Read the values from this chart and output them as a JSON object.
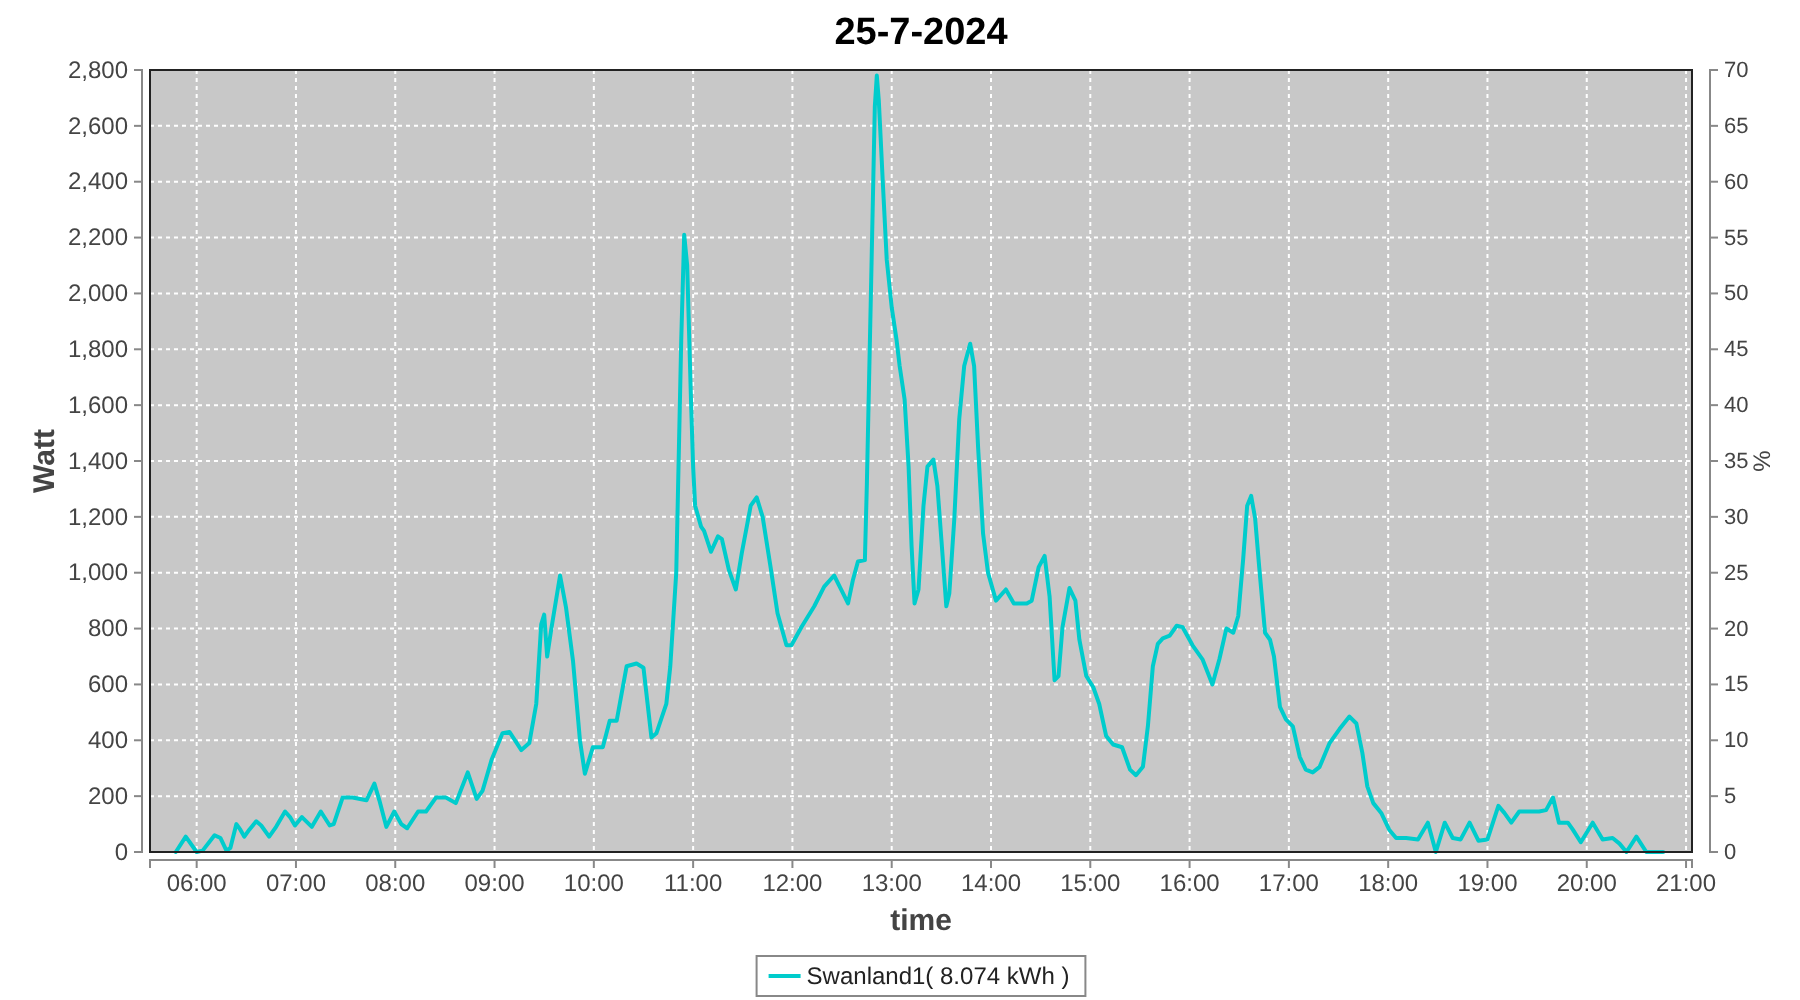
{
  "chart_data": {
    "type": "line",
    "title": "25-7-2024",
    "xlabel": "time",
    "ylabel": "Watt",
    "y2label": "%",
    "x": [
      5.79,
      5.89,
      6.0,
      6.06,
      6.18,
      6.24,
      6.3,
      6.34,
      6.4,
      6.44,
      6.48,
      6.53,
      6.6,
      6.65,
      6.73,
      6.8,
      6.89,
      6.94,
      6.99,
      7.06,
      7.16,
      7.25,
      7.34,
      7.38,
      7.47,
      7.57,
      7.71,
      7.79,
      7.84,
      7.91,
      7.99,
      8.06,
      8.12,
      8.23,
      8.31,
      8.41,
      8.51,
      8.61,
      8.73,
      8.82,
      8.88,
      8.97,
      9.08,
      9.15,
      9.27,
      9.35,
      9.42,
      9.47,
      9.5,
      9.53,
      9.57,
      9.66,
      9.72,
      9.79,
      9.86,
      9.91,
      9.99,
      10.09,
      10.16,
      10.23,
      10.33,
      10.43,
      10.5,
      10.58,
      10.63,
      10.73,
      10.77,
      10.83,
      10.88,
      10.91,
      10.94,
      10.98,
      11.0,
      11.02,
      11.08,
      11.11,
      11.18,
      11.25,
      11.29,
      11.36,
      11.43,
      11.49,
      11.58,
      11.64,
      11.7,
      11.78,
      11.85,
      11.94,
      11.99,
      12.09,
      12.22,
      12.32,
      12.42,
      12.49,
      12.56,
      12.61,
      12.66,
      12.73,
      12.75,
      12.79,
      12.83,
      12.85,
      12.87,
      12.88,
      12.91,
      12.95,
      13.0,
      13.05,
      13.08,
      13.13,
      13.17,
      13.2,
      13.23,
      13.27,
      13.32,
      13.36,
      13.42,
      13.46,
      13.5,
      13.55,
      13.58,
      13.63,
      13.68,
      13.73,
      13.79,
      13.83,
      13.87,
      13.92,
      13.97,
      14.05,
      14.15,
      14.23,
      14.36,
      14.41,
      14.48,
      14.54,
      14.59,
      14.64,
      14.68,
      14.72,
      14.79,
      14.85,
      14.89,
      14.96,
      15.03,
      15.09,
      15.16,
      15.23,
      15.32,
      15.4,
      15.46,
      15.53,
      15.58,
      15.63,
      15.68,
      15.73,
      15.8,
      15.87,
      15.93,
      16.03,
      16.13,
      16.23,
      16.3,
      16.37,
      16.44,
      16.49,
      16.54,
      16.58,
      16.62,
      16.66,
      16.7,
      16.76,
      16.81,
      16.85,
      16.91,
      16.97,
      17.04,
      17.11,
      17.17,
      17.24,
      17.31,
      17.41,
      17.51,
      17.61,
      17.68,
      17.74,
      17.79,
      17.85,
      17.93,
      18.01,
      18.08,
      18.18,
      18.3,
      18.4,
      18.48,
      18.57,
      18.65,
      18.73,
      18.82,
      18.91,
      19.0,
      19.11,
      19.17,
      19.24,
      19.32,
      19.52,
      19.59,
      19.66,
      19.72,
      19.81,
      19.86,
      19.94,
      20.06,
      20.16,
      20.26,
      20.33,
      20.4,
      20.5,
      20.6,
      20.77
    ],
    "series": [
      {
        "name": "Swanland1( 8.074 kWh )",
        "color": "#00cccc",
        "values": [
          0,
          55,
          0,
          5,
          60,
          50,
          5,
          15,
          100,
          80,
          55,
          80,
          110,
          95,
          55,
          90,
          145,
          125,
          95,
          125,
          90,
          145,
          95,
          100,
          195,
          195,
          185,
          245,
          185,
          90,
          145,
          100,
          85,
          145,
          145,
          195,
          195,
          175,
          285,
          190,
          220,
          330,
          425,
          430,
          365,
          390,
          530,
          815,
          850,
          700,
          795,
          990,
          875,
          685,
          400,
          280,
          375,
          375,
          470,
          470,
          665,
          675,
          660,
          410,
          425,
          530,
          665,
          1000,
          1830,
          2210,
          2100,
          1600,
          1380,
          1240,
          1165,
          1150,
          1075,
          1130,
          1120,
          1010,
          940,
          1070,
          1240,
          1270,
          1200,
          1020,
          855,
          740,
          740,
          805,
          880,
          950,
          990,
          940,
          890,
          975,
          1040,
          1045,
          1320,
          1990,
          2670,
          2780,
          2690,
          2620,
          2400,
          2120,
          1950,
          1830,
          1740,
          1620,
          1380,
          1095,
          890,
          940,
          1240,
          1380,
          1405,
          1310,
          1120,
          880,
          925,
          1190,
          1550,
          1740,
          1820,
          1740,
          1450,
          1140,
          1000,
          900,
          940,
          890,
          890,
          900,
          1020,
          1060,
          915,
          615,
          630,
          805,
          945,
          900,
          760,
          630,
          590,
          530,
          415,
          385,
          375,
          295,
          275,
          305,
          450,
          665,
          745,
          765,
          775,
          810,
          805,
          740,
          690,
          600,
          690,
          800,
          785,
          845,
          1050,
          1240,
          1275,
          1195,
          1025,
          785,
          760,
          700,
          520,
          475,
          450,
          340,
          295,
          285,
          305,
          390,
          440,
          485,
          460,
          355,
          235,
          175,
          140,
          80,
          50,
          50,
          45,
          105,
          0,
          105,
          50,
          45,
          105,
          40,
          45,
          165,
          140,
          105,
          145,
          145,
          150,
          195,
          105,
          105,
          80,
          35,
          105,
          45,
          50,
          30,
          0,
          55,
          0,
          0
        ]
      }
    ],
    "xlim": [
      5.53,
      21.06
    ],
    "xticks": [
      {
        "value": 6,
        "label": "06:00"
      },
      {
        "value": 7,
        "label": "07:00"
      },
      {
        "value": 8,
        "label": "08:00"
      },
      {
        "value": 9,
        "label": "09:00"
      },
      {
        "value": 10,
        "label": "10:00"
      },
      {
        "value": 11,
        "label": "11:00"
      },
      {
        "value": 12,
        "label": "12:00"
      },
      {
        "value": 13,
        "label": "13:00"
      },
      {
        "value": 14,
        "label": "14:00"
      },
      {
        "value": 15,
        "label": "15:00"
      },
      {
        "value": 16,
        "label": "16:00"
      },
      {
        "value": 17,
        "label": "17:00"
      },
      {
        "value": 18,
        "label": "18:00"
      },
      {
        "value": 19,
        "label": "19:00"
      },
      {
        "value": 20,
        "label": "20:00"
      },
      {
        "value": 21,
        "label": "21:00"
      }
    ],
    "ylim": [
      0,
      2800
    ],
    "yticks": [
      0,
      200,
      400,
      600,
      800,
      {
        "value": 1000,
        "label": "1,000"
      },
      {
        "value": 1200,
        "label": "1,200"
      },
      {
        "value": 1400,
        "label": "1,400"
      },
      {
        "value": 1600,
        "label": "1,600"
      },
      {
        "value": 1800,
        "label": "1,800"
      },
      {
        "value": 2000,
        "label": "2,000"
      },
      {
        "value": 2200,
        "label": "2,200"
      },
      {
        "value": 2400,
        "label": "2,400"
      },
      {
        "value": 2600,
        "label": "2,600"
      },
      {
        "value": 2800,
        "label": "2,800"
      }
    ],
    "y2lim": [
      0,
      70
    ],
    "y2ticks": [
      0,
      5,
      10,
      15,
      20,
      25,
      30,
      35,
      40,
      45,
      50,
      55,
      60,
      65,
      70
    ],
    "grid": true,
    "legend": "bottom"
  }
}
